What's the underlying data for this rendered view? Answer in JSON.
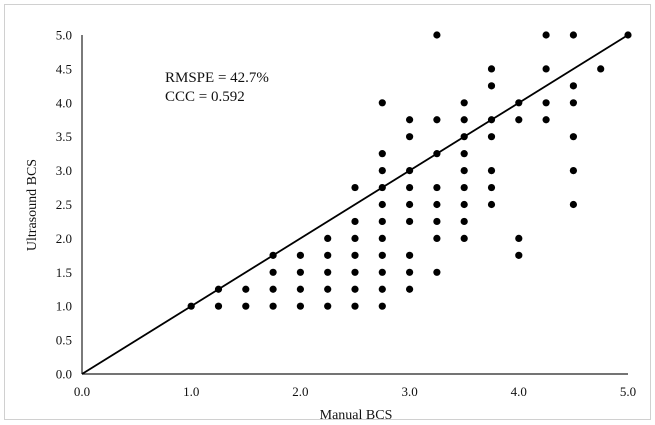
{
  "chart_data": {
    "type": "scatter",
    "xlabel": "Manual BCS",
    "ylabel": "Ultrasound BCS",
    "xlim": [
      0,
      5
    ],
    "ylim": [
      0,
      5
    ],
    "x_ticks": [
      "0.0",
      "1.0",
      "2.0",
      "3.0",
      "4.0",
      "5.0"
    ],
    "y_ticks": [
      "0.0",
      "0.5",
      "1.0",
      "1.5",
      "2.0",
      "2.5",
      "3.0",
      "3.5",
      "4.0",
      "4.5",
      "5.0"
    ],
    "annotations": [
      "RMSPE = 42.7%",
      "CCC = 0.592"
    ],
    "reference_line": {
      "from": [
        0,
        0
      ],
      "to": [
        5,
        5
      ]
    },
    "point_color": "#000000",
    "points": [
      [
        1.0,
        1.0
      ],
      [
        1.25,
        1.0
      ],
      [
        1.25,
        1.25
      ],
      [
        1.5,
        1.0
      ],
      [
        1.5,
        1.25
      ],
      [
        1.75,
        1.0
      ],
      [
        1.75,
        1.25
      ],
      [
        1.75,
        1.5
      ],
      [
        1.75,
        1.75
      ],
      [
        2.0,
        1.0
      ],
      [
        2.0,
        1.25
      ],
      [
        2.0,
        1.5
      ],
      [
        2.0,
        1.75
      ],
      [
        2.25,
        1.0
      ],
      [
        2.25,
        1.25
      ],
      [
        2.25,
        1.5
      ],
      [
        2.25,
        1.75
      ],
      [
        2.25,
        2.0
      ],
      [
        2.5,
        1.0
      ],
      [
        2.5,
        1.25
      ],
      [
        2.5,
        1.5
      ],
      [
        2.5,
        1.75
      ],
      [
        2.5,
        2.0
      ],
      [
        2.5,
        2.25
      ],
      [
        2.5,
        2.75
      ],
      [
        2.75,
        1.0
      ],
      [
        2.75,
        1.25
      ],
      [
        2.75,
        1.5
      ],
      [
        2.75,
        1.75
      ],
      [
        2.75,
        2.0
      ],
      [
        2.75,
        2.25
      ],
      [
        2.75,
        2.5
      ],
      [
        2.75,
        2.75
      ],
      [
        2.75,
        3.0
      ],
      [
        2.75,
        3.25
      ],
      [
        2.75,
        4.0
      ],
      [
        3.0,
        1.25
      ],
      [
        3.0,
        1.5
      ],
      [
        3.0,
        1.75
      ],
      [
        3.0,
        2.25
      ],
      [
        3.0,
        2.5
      ],
      [
        3.0,
        2.75
      ],
      [
        3.0,
        3.0
      ],
      [
        3.0,
        3.5
      ],
      [
        3.0,
        3.75
      ],
      [
        3.25,
        1.5
      ],
      [
        3.25,
        2.0
      ],
      [
        3.25,
        2.25
      ],
      [
        3.25,
        2.5
      ],
      [
        3.25,
        2.75
      ],
      [
        3.25,
        3.25
      ],
      [
        3.25,
        3.75
      ],
      [
        3.25,
        5.0
      ],
      [
        3.5,
        2.0
      ],
      [
        3.5,
        2.25
      ],
      [
        3.5,
        2.5
      ],
      [
        3.5,
        2.75
      ],
      [
        3.5,
        3.0
      ],
      [
        3.5,
        3.25
      ],
      [
        3.5,
        3.5
      ],
      [
        3.5,
        3.75
      ],
      [
        3.5,
        4.0
      ],
      [
        3.75,
        2.5
      ],
      [
        3.75,
        2.75
      ],
      [
        3.75,
        3.0
      ],
      [
        3.75,
        3.5
      ],
      [
        3.75,
        3.75
      ],
      [
        3.75,
        4.25
      ],
      [
        3.75,
        4.5
      ],
      [
        4.0,
        1.75
      ],
      [
        4.0,
        2.0
      ],
      [
        4.0,
        3.75
      ],
      [
        4.0,
        4.0
      ],
      [
        4.25,
        3.75
      ],
      [
        4.25,
        4.0
      ],
      [
        4.25,
        4.5
      ],
      [
        4.25,
        5.0
      ],
      [
        4.5,
        2.5
      ],
      [
        4.5,
        3.0
      ],
      [
        4.5,
        3.5
      ],
      [
        4.5,
        4.0
      ],
      [
        4.5,
        4.25
      ],
      [
        4.5,
        5.0
      ],
      [
        4.75,
        4.5
      ],
      [
        5.0,
        5.0
      ]
    ]
  }
}
